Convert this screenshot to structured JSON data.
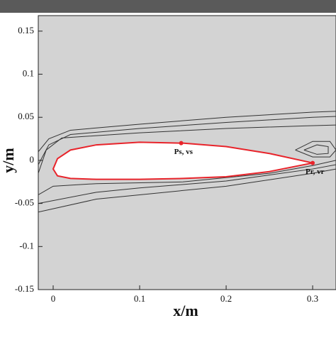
{
  "chart_data": {
    "type": "line",
    "xlabel": "x/m",
    "ylabel": "y/m",
    "xlim": [
      -0.0172,
      0.327
    ],
    "ylim": [
      -0.15,
      0.168
    ],
    "xticks": [
      0,
      0.1,
      0.2,
      0.3
    ],
    "yticks": [
      -0.15,
      -0.1,
      -0.05,
      0,
      0.05,
      0.1,
      0.15
    ],
    "background": "#d3d3d3",
    "body": {
      "color": "#e8242b",
      "fill": "#ffffff",
      "x": [
        0.3,
        0.25,
        0.2,
        0.15,
        0.1,
        0.05,
        0.02,
        0.005,
        0,
        0.005,
        0.02,
        0.05,
        0.1,
        0.15,
        0.2,
        0.25,
        0.3
      ],
      "y": [
        -0.003,
        0.008,
        0.016,
        0.02,
        0.021,
        0.018,
        0.012,
        0.002,
        -0.01,
        -0.018,
        -0.021,
        -0.022,
        -0.022,
        -0.021,
        -0.019,
        -0.013,
        -0.003
      ]
    },
    "lines": [
      {
        "color": "#333333",
        "x": [
          -0.0172,
          -0.005,
          0.02,
          0.1,
          0.2,
          0.3,
          0.327
        ],
        "y": [
          0.01,
          0.025,
          0.035,
          0.042,
          0.05,
          0.056,
          0.057
        ]
      },
      {
        "color": "#333333",
        "x": [
          -0.0172,
          -0.005,
          0.02,
          0.1,
          0.2,
          0.3,
          0.327
        ],
        "y": [
          -0.005,
          0.018,
          0.03,
          0.037,
          0.044,
          0.05,
          0.051
        ]
      },
      {
        "color": "#333333",
        "x": [
          -0.0172,
          -0.008,
          0.01,
          0.1,
          0.2,
          0.29,
          0.327
        ],
        "y": [
          -0.015,
          0.012,
          0.026,
          0.032,
          0.037,
          0.04,
          0.041
        ]
      },
      {
        "color": "#333333",
        "x": [
          -0.0172,
          0.05,
          0.1,
          0.2,
          0.3,
          0.327
        ],
        "y": [
          -0.06,
          -0.045,
          -0.04,
          -0.03,
          -0.015,
          -0.01
        ]
      },
      {
        "color": "#333333",
        "x": [
          -0.0172,
          0.05,
          0.1,
          0.2,
          0.3,
          0.327
        ],
        "y": [
          -0.05,
          -0.037,
          -0.032,
          -0.024,
          -0.01,
          -0.005
        ]
      },
      {
        "color": "#333333",
        "x": [
          -0.0172,
          0.0,
          0.05,
          0.15,
          0.25,
          0.3,
          0.327
        ],
        "y": [
          -0.04,
          -0.03,
          -0.027,
          -0.025,
          -0.015,
          -0.006,
          0.0
        ]
      },
      {
        "color": "#333333",
        "x": [
          0.28,
          0.3,
          0.32,
          0.327,
          0.32,
          0.3,
          0.28
        ],
        "y": [
          0.012,
          0.022,
          0.022,
          0.012,
          0.004,
          0.004,
          0.012
        ]
      },
      {
        "color": "#333333",
        "x": [
          0.29,
          0.305,
          0.318,
          0.318,
          0.305,
          0.29
        ],
        "y": [
          0.012,
          0.018,
          0.016,
          0.008,
          0.007,
          0.012
        ]
      }
    ],
    "points": [
      {
        "x": 0.148,
        "y": 0.02,
        "label": "Ps, vs",
        "color": "#e8242b"
      },
      {
        "x": 0.3,
        "y": -0.003,
        "label": "Pr, vr",
        "color": "#e8242b"
      }
    ]
  }
}
